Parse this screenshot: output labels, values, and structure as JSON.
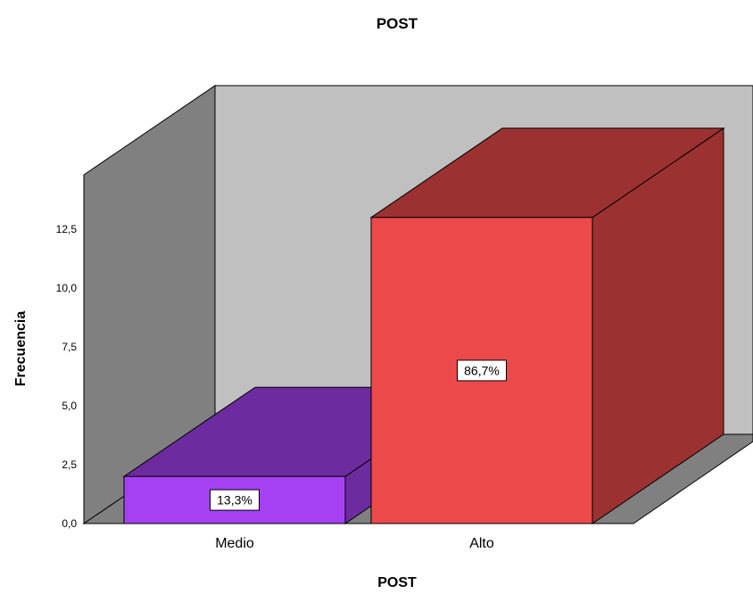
{
  "chart_data": {
    "type": "bar",
    "title": "POST",
    "xlabel": "POST",
    "ylabel": "Frecuencia",
    "categories": [
      "Medio",
      "Alto"
    ],
    "values": [
      2,
      13
    ],
    "data_labels": [
      "13,3%",
      "86,7%"
    ],
    "colors": [
      "#a541f3",
      "#ec4a4a"
    ],
    "ylim": [
      0,
      13
    ],
    "yticks": [
      "0,0",
      "2,5",
      "5,0",
      "7,5",
      "10,0",
      "12,5"
    ],
    "grid": false,
    "legend": "none",
    "three_d": true
  }
}
